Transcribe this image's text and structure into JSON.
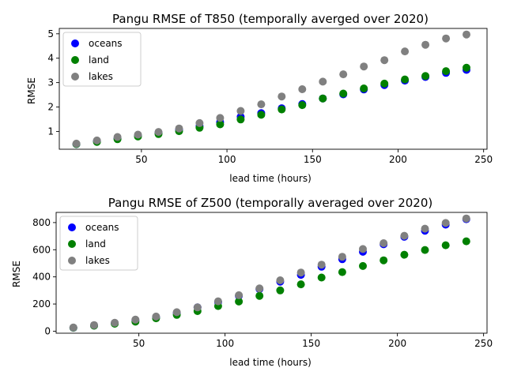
{
  "chart_data": [
    {
      "type": "scatter",
      "title": "Pangu RMSE of T850 (temporally averged over 2020)",
      "xlabel": "lead time (hours)",
      "ylabel": "RMSE",
      "xlim": [
        2,
        252
      ],
      "ylim": [
        0.27,
        5.22
      ],
      "xticks": [
        50,
        100,
        150,
        200,
        250
      ],
      "yticks": [
        1,
        2,
        3,
        4,
        5
      ],
      "grid": false,
      "legend_position": "upper-left",
      "x": [
        12,
        24,
        36,
        48,
        60,
        72,
        84,
        96,
        108,
        120,
        132,
        144,
        156,
        168,
        180,
        192,
        204,
        216,
        228,
        240
      ],
      "series": [
        {
          "name": "oceans",
          "color": "#0000ff",
          "values": [
            0.48,
            0.6,
            0.72,
            0.83,
            0.95,
            1.07,
            1.22,
            1.38,
            1.6,
            1.75,
            1.95,
            2.12,
            2.35,
            2.52,
            2.72,
            2.9,
            3.08,
            3.23,
            3.4,
            3.52
          ]
        },
        {
          "name": "land",
          "color": "#008000",
          "values": [
            0.48,
            0.57,
            0.68,
            0.79,
            0.89,
            1.01,
            1.15,
            1.29,
            1.49,
            1.68,
            1.9,
            2.08,
            2.35,
            2.55,
            2.76,
            2.96,
            3.13,
            3.27,
            3.47,
            3.61
          ]
        },
        {
          "name": "lakes",
          "color": "#808080",
          "values": [
            0.5,
            0.63,
            0.77,
            0.87,
            0.98,
            1.12,
            1.34,
            1.55,
            1.84,
            2.11,
            2.43,
            2.73,
            3.04,
            3.34,
            3.66,
            3.92,
            4.28,
            4.55,
            4.81,
            4.97
          ]
        }
      ]
    },
    {
      "type": "scatter",
      "title": "Pangu RMSE of Z500 (temporally averaged over 2020)",
      "xlabel": "lead time (hours)",
      "ylabel": "RMSE",
      "xlim": [
        2,
        252
      ],
      "ylim": [
        -15,
        875
      ],
      "xticks": [
        50,
        100,
        150,
        200,
        250
      ],
      "yticks": [
        0,
        200,
        400,
        600,
        800
      ],
      "grid": false,
      "legend_position": "upper-left",
      "x": [
        12,
        24,
        36,
        48,
        60,
        72,
        84,
        96,
        108,
        120,
        132,
        144,
        156,
        168,
        180,
        192,
        204,
        216,
        228,
        240
      ],
      "series": [
        {
          "name": "oceans",
          "color": "#0000ff",
          "values": [
            25,
            42,
            60,
            80,
            103,
            135,
            175,
            215,
            260,
            310,
            365,
            415,
            475,
            530,
            585,
            640,
            695,
            740,
            785,
            825
          ]
        },
        {
          "name": "land",
          "color": "#008000",
          "values": [
            25,
            40,
            55,
            70,
            95,
            120,
            148,
            185,
            218,
            260,
            300,
            345,
            395,
            435,
            480,
            522,
            563,
            598,
            633,
            662
          ]
        },
        {
          "name": "lakes",
          "color": "#808080",
          "values": [
            27,
            45,
            62,
            85,
            108,
            140,
            175,
            220,
            265,
            315,
            375,
            432,
            490,
            548,
            605,
            648,
            703,
            755,
            797,
            830
          ]
        }
      ]
    }
  ]
}
